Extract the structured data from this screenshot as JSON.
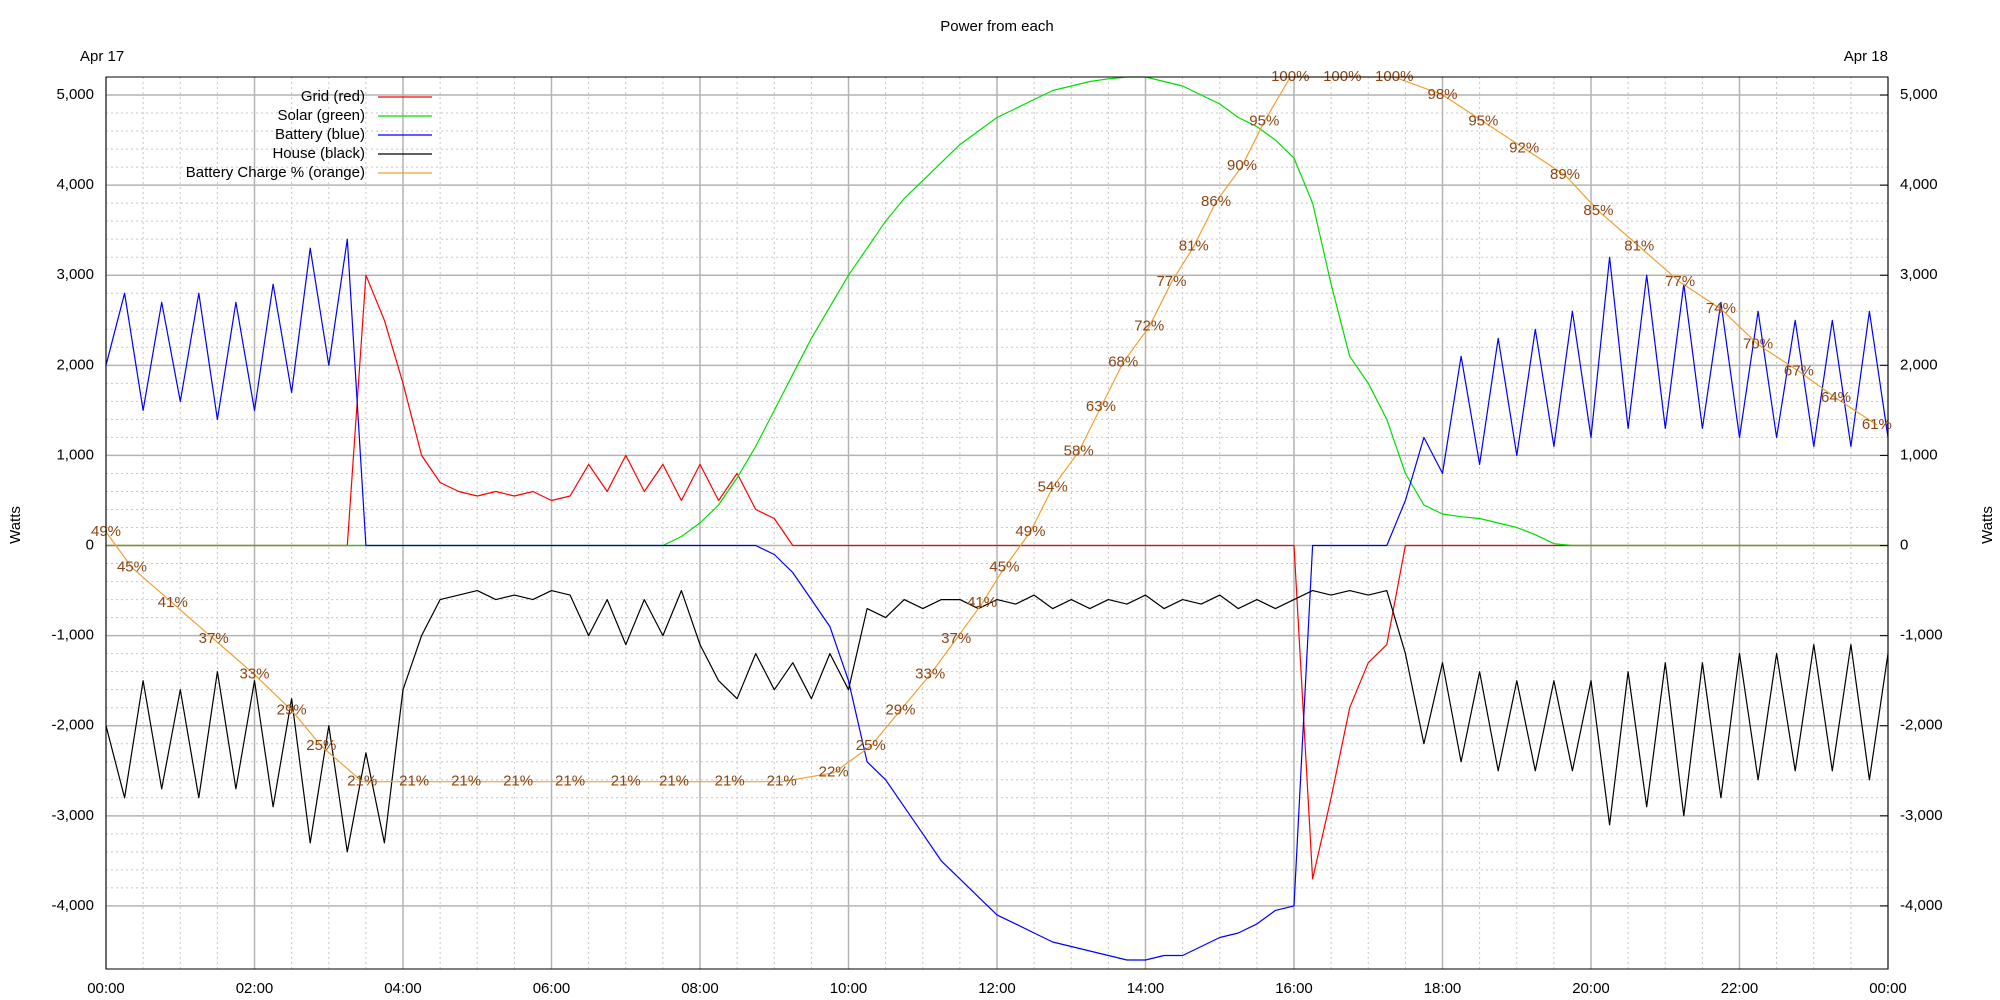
{
  "chart_data": {
    "type": "line",
    "title": "Power from each",
    "top_labels": [
      "Apr 17",
      "Apr 18"
    ],
    "ylabel": "Watts",
    "y2label": "Watts",
    "grid": true,
    "legend": "top left",
    "xlim": [
      0,
      24
    ],
    "xticks": [
      {
        "value": 0,
        "label": "00:00"
      },
      {
        "value": 2,
        "label": "02:00"
      },
      {
        "value": 4,
        "label": "04:00"
      },
      {
        "value": 6,
        "label": "06:00"
      },
      {
        "value": 8,
        "label": "08:00"
      },
      {
        "value": 10,
        "label": "10:00"
      },
      {
        "value": 12,
        "label": "12:00"
      },
      {
        "value": 14,
        "label": "14:00"
      },
      {
        "value": 16,
        "label": "16:00"
      },
      {
        "value": 18,
        "label": "18:00"
      },
      {
        "value": 20,
        "label": "20:00"
      },
      {
        "value": 22,
        "label": "22:00"
      },
      {
        "value": 24,
        "label": "00:00"
      }
    ],
    "ylim": [
      -4700,
      5200
    ],
    "yticks": [
      {
        "value": -4000,
        "label": "-4,000"
      },
      {
        "value": -3000,
        "label": "-3,000"
      },
      {
        "value": -2000,
        "label": "-2,000"
      },
      {
        "value": -1000,
        "label": "-1,000"
      },
      0,
      {
        "value": 1000,
        "label": "1,000"
      },
      {
        "value": 2000,
        "label": "2,000"
      },
      {
        "value": 3000,
        "label": "3,000"
      },
      {
        "value": 4000,
        "label": "4,000"
      },
      {
        "value": 5000,
        "label": "5,000"
      }
    ],
    "y2lim": [
      -4700,
      5200
    ],
    "y2ticks": [
      {
        "value": -4000,
        "label": "-4,000"
      },
      {
        "value": -3000,
        "label": "-3,000"
      },
      {
        "value": -2000,
        "label": "-2,000"
      },
      {
        "value": -1000,
        "label": "-1,000"
      },
      0,
      {
        "value": 1000,
        "label": "1,000"
      },
      {
        "value": 2000,
        "label": "2,000"
      },
      {
        "value": 3000,
        "label": "3,000"
      },
      {
        "value": 4000,
        "label": "4,000"
      },
      {
        "value": 5000,
        "label": "5,000"
      }
    ],
    "charge_lim": [
      0,
      100
    ],
    "x": [
      0,
      0.25,
      0.5,
      0.75,
      1,
      1.25,
      1.5,
      1.75,
      2,
      2.25,
      2.5,
      2.75,
      3,
      3.25,
      3.5,
      3.75,
      4,
      4.25,
      4.5,
      4.75,
      5,
      5.25,
      5.5,
      5.75,
      6,
      6.25,
      6.5,
      6.75,
      7,
      7.25,
      7.5,
      7.75,
      8,
      8.25,
      8.5,
      8.75,
      9,
      9.25,
      9.5,
      9.75,
      10,
      10.25,
      10.5,
      10.75,
      11,
      11.25,
      11.5,
      11.75,
      12,
      12.25,
      12.5,
      12.75,
      13,
      13.25,
      13.5,
      13.75,
      14,
      14.25,
      14.5,
      14.75,
      15,
      15.25,
      15.5,
      15.75,
      16,
      16.25,
      16.5,
      16.75,
      17,
      17.25,
      17.5,
      17.75,
      18,
      18.25,
      18.5,
      18.75,
      19,
      19.25,
      19.5,
      19.75,
      20,
      20.25,
      20.5,
      20.75,
      21,
      21.25,
      21.5,
      21.75,
      22,
      22.25,
      22.5,
      22.75,
      23,
      23.25,
      23.5,
      23.75,
      24
    ],
    "series": [
      {
        "name": "Grid (red)",
        "color": "#ff0000",
        "values": [
          0,
          0,
          0,
          0,
          0,
          0,
          0,
          0,
          0,
          0,
          0,
          0,
          0,
          0,
          3000,
          2500,
          1800,
          1000,
          700,
          600,
          550,
          600,
          550,
          600,
          500,
          550,
          900,
          600,
          1000,
          600,
          900,
          500,
          900,
          500,
          800,
          400,
          300,
          0,
          0,
          0,
          0,
          0,
          0,
          0,
          0,
          0,
          0,
          0,
          0,
          0,
          0,
          0,
          0,
          0,
          0,
          0,
          0,
          0,
          0,
          0,
          0,
          0,
          0,
          0,
          0,
          -3700,
          -2800,
          -1800,
          -1300,
          -1100,
          0,
          0,
          0,
          0,
          0,
          0,
          0,
          0,
          0,
          0,
          0,
          0,
          0,
          0,
          0,
          0,
          0,
          0,
          0,
          0,
          0,
          0,
          0,
          0,
          0,
          0,
          0
        ]
      },
      {
        "name": "Solar (green)",
        "color": "#00dd00",
        "values": [
          0,
          0,
          0,
          0,
          0,
          0,
          0,
          0,
          0,
          0,
          0,
          0,
          0,
          0,
          0,
          0,
          0,
          0,
          0,
          0,
          0,
          0,
          0,
          0,
          0,
          0,
          0,
          0,
          0,
          0,
          0,
          100,
          250,
          450,
          750,
          1100,
          1500,
          1900,
          2300,
          2650,
          3000,
          3300,
          3600,
          3850,
          4050,
          4250,
          4450,
          4600,
          4750,
          4850,
          4950,
          5050,
          5100,
          5150,
          5180,
          5200,
          5200,
          5150,
          5100,
          5000,
          4900,
          4750,
          4650,
          4500,
          4300,
          3800,
          2900,
          2100,
          1800,
          1400,
          800,
          450,
          350,
          320,
          300,
          250,
          200,
          120,
          20,
          0,
          0,
          0,
          0,
          0,
          0,
          0,
          0,
          0,
          0,
          0,
          0,
          0,
          0,
          0,
          0,
          0,
          0
        ]
      },
      {
        "name": "Battery (blue)",
        "color": "#0000ff",
        "values": [
          2000,
          2800,
          1500,
          2700,
          1600,
          2800,
          1400,
          2700,
          1500,
          2900,
          1700,
          3300,
          2000,
          3400,
          0,
          0,
          0,
          0,
          0,
          0,
          0,
          0,
          0,
          0,
          0,
          0,
          0,
          0,
          0,
          0,
          0,
          0,
          0,
          0,
          0,
          0,
          -100,
          -300,
          -600,
          -900,
          -1500,
          -2400,
          -2600,
          -2900,
          -3200,
          -3500,
          -3700,
          -3900,
          -4100,
          -4200,
          -4300,
          -4400,
          -4450,
          -4500,
          -4550,
          -4600,
          -4600,
          -4550,
          -4550,
          -4450,
          -4350,
          -4300,
          -4200,
          -4050,
          -4000,
          0,
          0,
          0,
          0,
          0,
          500,
          1200,
          800,
          2100,
          900,
          2300,
          1000,
          2400,
          1100,
          2600,
          1200,
          3200,
          1300,
          3000,
          1300,
          2900,
          1300,
          2700,
          1200,
          2600,
          1200,
          2500,
          1100,
          2500,
          1100,
          2600,
          1200
        ]
      },
      {
        "name": "House (black)",
        "color": "#000000",
        "values": [
          -2000,
          -2800,
          -1500,
          -2700,
          -1600,
          -2800,
          -1400,
          -2700,
          -1500,
          -2900,
          -1700,
          -3300,
          -2000,
          -3400,
          -2300,
          -3300,
          -1600,
          -1000,
          -600,
          -550,
          -500,
          -600,
          -550,
          -600,
          -500,
          -550,
          -1000,
          -600,
          -1100,
          -600,
          -1000,
          -500,
          -1100,
          -1500,
          -1700,
          -1200,
          -1600,
          -1300,
          -1700,
          -1200,
          -1600,
          -700,
          -800,
          -600,
          -700,
          -600,
          -600,
          -700,
          -600,
          -650,
          -550,
          -700,
          -600,
          -700,
          -600,
          -650,
          -550,
          -700,
          -600,
          -650,
          -550,
          -700,
          -600,
          -700,
          -600,
          -500,
          -550,
          -500,
          -550,
          -500,
          -1200,
          -2200,
          -1300,
          -2400,
          -1400,
          -2500,
          -1500,
          -2500,
          -1500,
          -2500,
          -1500,
          -3100,
          -1400,
          -2900,
          -1300,
          -3000,
          -1300,
          -2800,
          -1200,
          -2600,
          -1200,
          -2500,
          -1100,
          -2500,
          -1100,
          -2600,
          -1200
        ]
      },
      {
        "name": "Battery Charge % (orange)",
        "color": "#f0a030",
        "axis": "charge",
        "label_color": "#8b4513",
        "x": [
          0,
          0.35,
          0.9,
          1.45,
          2,
          2.5,
          2.9,
          3.45,
          4.15,
          4.85,
          5.55,
          6.25,
          7,
          7.65,
          8.4,
          9.1,
          9.8,
          10.3,
          10.7,
          11.1,
          11.45,
          11.8,
          12.1,
          12.45,
          12.75,
          13.1,
          13.4,
          13.7,
          14.05,
          14.35,
          14.65,
          14.95,
          15.3,
          15.6,
          15.95,
          16.65,
          17.35,
          18,
          18.55,
          19.1,
          19.65,
          20.1,
          20.65,
          21.2,
          21.75,
          22.25,
          22.8,
          23.3,
          23.85
        ],
        "values": [
          49,
          45,
          41,
          37,
          33,
          29,
          25,
          21,
          21,
          21,
          21,
          21,
          21,
          21,
          21,
          21,
          22,
          25,
          29,
          33,
          37,
          41,
          45,
          49,
          54,
          58,
          63,
          68,
          72,
          77,
          81,
          86,
          90,
          95,
          100,
          100,
          100,
          98,
          95,
          92,
          89,
          85,
          81,
          77,
          74,
          70,
          67,
          64,
          61
        ],
        "value_labels": [
          "49%",
          "45%",
          "41%",
          "37%",
          "33%",
          "29%",
          "25%",
          "21%",
          "21%",
          "21%",
          "21%",
          "21%",
          "21%",
          "21%",
          "21%",
          "21%",
          "22%",
          "25%",
          "29%",
          "33%",
          "37%",
          "41%",
          "45%",
          "49%",
          "54%",
          "58%",
          "63%",
          "68%",
          "72%",
          "77%",
          "81%",
          "86%",
          "90%",
          "95%",
          "100%",
          "100%",
          "100%",
          "98%",
          "95%",
          "92%",
          "89%",
          "85%",
          "81%",
          "77%",
          "74%",
          "70%",
          "67%",
          "64%",
          "61%"
        ]
      }
    ]
  }
}
